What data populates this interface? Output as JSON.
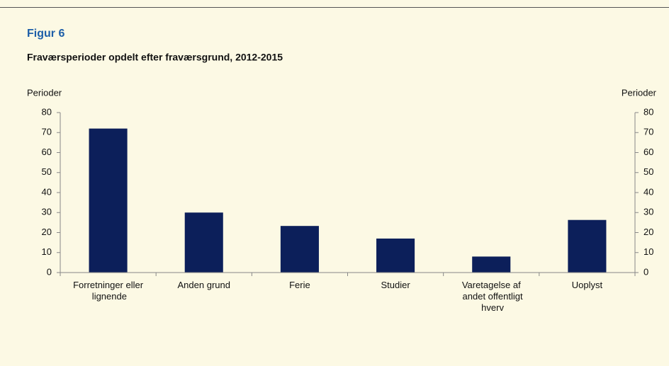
{
  "chart_data": {
    "type": "bar",
    "title": "Figur 6",
    "subtitle": "Fraværsperioder opdelt efter fraværsgrund, 2012-2015",
    "ylabel": "Perioder",
    "y2label": "Perioder",
    "categories": [
      "Forretninger eller lignende",
      "Anden grund",
      "Ferie",
      "Studier",
      "Varetagelse af andet offentligt hverv",
      "Uoplyst"
    ],
    "values": [
      72,
      30,
      23.3,
      17,
      8,
      26.3
    ],
    "color": "#0c1f5a",
    "ylim": [
      0,
      80
    ],
    "yticks": [
      0,
      10,
      20,
      30,
      40,
      50,
      60,
      70,
      80
    ],
    "y2lim": [
      0,
      80
    ],
    "y2ticks": [
      0,
      10,
      20,
      30,
      40,
      50,
      60,
      70,
      80
    ],
    "grid": false
  }
}
